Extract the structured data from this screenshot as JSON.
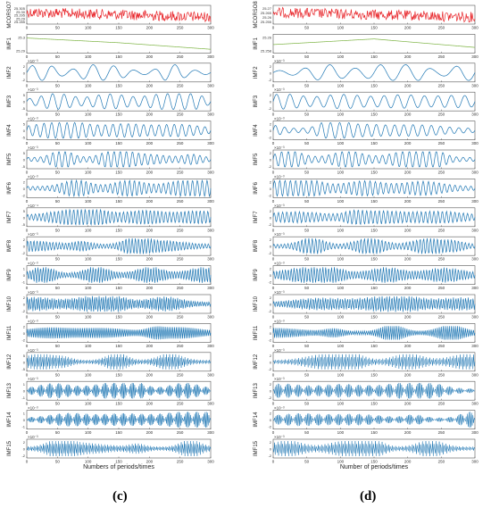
{
  "chart_data": [
    {
      "type": "line",
      "panel": "c",
      "caption": "(c)",
      "xlabel": "Numbers of periods/times",
      "xlim": [
        0,
        300
      ],
      "xticks": [
        0,
        50,
        100,
        150,
        200,
        250,
        300
      ],
      "subplots": [
        {
          "label": "MCORSO7",
          "kind": "noise",
          "color": "#e8262b",
          "yticks": [
            "25.305",
            "25.30",
            "25.295",
            "25.29",
            "25.285"
          ],
          "offset": 0,
          "amp": 0.4,
          "freq": 0,
          "env": 0
        },
        {
          "label": "IMF1",
          "kind": "trend",
          "color": "#7cb342",
          "yticks": [
            "25.3",
            "25.29"
          ],
          "trend": [
            0.8,
            0.55,
            0.2
          ]
        },
        {
          "label": "IMF2",
          "kind": "osc",
          "color": "#1f77b4",
          "exp": "×10⁻³",
          "yticks": [
            "2",
            "0",
            "-2"
          ],
          "freq": 9,
          "env": 1
        },
        {
          "label": "IMF3",
          "kind": "osc",
          "color": "#1f77b4",
          "exp": "×10⁻³",
          "yticks": [
            "5",
            "0",
            "-5"
          ],
          "freq": 16,
          "env": 2
        },
        {
          "label": "IMF4",
          "kind": "osc",
          "color": "#1f77b4",
          "exp": "×10⁻³",
          "yticks": [
            "5",
            "0",
            "-5"
          ],
          "freq": 24,
          "env": 3
        },
        {
          "label": "IMF5",
          "kind": "osc",
          "color": "#1f77b4",
          "exp": "×10⁻³",
          "yticks": [
            "5",
            "0",
            "-5"
          ],
          "freq": 30,
          "env": 4
        },
        {
          "label": "IMF6",
          "kind": "osc",
          "color": "#1f77b4",
          "exp": "×10⁻³",
          "yticks": [
            "2",
            "0",
            "-2"
          ],
          "freq": 38,
          "env": 5
        },
        {
          "label": "IMF7",
          "kind": "osc",
          "color": "#1f77b4",
          "exp": "×10⁻⁴",
          "yticks": [
            "5",
            "0",
            "-5"
          ],
          "freq": 48,
          "env": 6
        },
        {
          "label": "IMF8",
          "kind": "osc",
          "color": "#1f77b4",
          "exp": "×10⁻³",
          "yticks": [
            "2",
            "0",
            "-2"
          ],
          "freq": 58,
          "env": 7
        },
        {
          "label": "IMF9",
          "kind": "osc",
          "color": "#1f77b4",
          "exp": "×10⁻³",
          "yticks": [
            "1",
            "0",
            "-1"
          ],
          "freq": 70,
          "env": 8
        },
        {
          "label": "IMF10",
          "kind": "osc",
          "color": "#1f77b4",
          "exp": "×10⁻³",
          "yticks": [
            "2",
            "0",
            "-2"
          ],
          "freq": 82,
          "env": 9
        },
        {
          "label": "IMF11",
          "kind": "osc",
          "color": "#1f77b4",
          "exp": "×10⁻³",
          "yticks": [
            "2",
            "0",
            "-2"
          ],
          "freq": 100,
          "env": 10
        },
        {
          "label": "IMF12",
          "kind": "osc",
          "color": "#1f77b4",
          "exp": "×10⁻³",
          "yticks": [
            "5",
            "0",
            "-5"
          ],
          "freq": 120,
          "env": 11
        },
        {
          "label": "IMF13",
          "kind": "osc",
          "color": "#1f77b4",
          "exp": "×10⁻³",
          "yticks": [
            "1",
            "0",
            "-1"
          ],
          "freq": 140,
          "env": 12
        },
        {
          "label": "IMF14",
          "kind": "osc",
          "color": "#1f77b4",
          "exp": "×10⁻³",
          "yticks": [
            "1",
            "0",
            "-1"
          ],
          "freq": 160,
          "env": 13
        },
        {
          "label": "IMF15",
          "kind": "osc",
          "color": "#1f77b4",
          "exp": "×10⁻³",
          "yticks": [
            "2",
            "0",
            "-2"
          ],
          "freq": 180,
          "env": 14
        }
      ]
    },
    {
      "type": "line",
      "panel": "d",
      "caption": "(d)",
      "xlabel": "Number of periods/times",
      "xlim": [
        0,
        300
      ],
      "xticks": [
        0,
        50,
        100,
        150,
        200,
        250,
        300
      ],
      "subplots": [
        {
          "label": "MCORSO8",
          "kind": "noise",
          "color": "#e8262b",
          "yticks": [
            "25.27",
            "25.265",
            "25.26",
            "25.255"
          ],
          "offset": 0,
          "amp": 0.3,
          "freq": 0,
          "env": 0
        },
        {
          "label": "IMF1",
          "kind": "trend",
          "color": "#7cb342",
          "yticks": [
            "25.26",
            "25.258"
          ],
          "trend": [
            0.45,
            0.75,
            0.3
          ]
        },
        {
          "label": "IMF2",
          "kind": "osc",
          "color": "#1f77b4",
          "exp": "×10⁻³",
          "yticks": [
            "2",
            "0",
            "-2"
          ],
          "freq": 8,
          "env": 15
        },
        {
          "label": "IMF3",
          "kind": "osc",
          "color": "#1f77b4",
          "exp": "×10⁻³",
          "yticks": [
            "2",
            "0",
            "-2"
          ],
          "freq": 15,
          "env": 16
        },
        {
          "label": "IMF4",
          "kind": "osc",
          "color": "#1f77b4",
          "exp": "×10⁻³",
          "yticks": [
            "2",
            "0",
            "-2"
          ],
          "freq": 22,
          "env": 17
        },
        {
          "label": "IMF5",
          "kind": "osc",
          "color": "#1f77b4",
          "exp": "×10⁻³",
          "yticks": [
            "2",
            "0",
            "-2"
          ],
          "freq": 30,
          "env": 18
        },
        {
          "label": "IMF6",
          "kind": "osc",
          "color": "#1f77b4",
          "exp": "×10⁻³",
          "yticks": [
            "2",
            "0",
            "-2"
          ],
          "freq": 38,
          "env": 19
        },
        {
          "label": "IMF7",
          "kind": "osc",
          "color": "#1f77b4",
          "exp": "×10⁻³",
          "yticks": [
            "2",
            "0",
            "-2"
          ],
          "freq": 48,
          "env": 20
        },
        {
          "label": "IMF8",
          "kind": "osc",
          "color": "#1f77b4",
          "exp": "×10⁻³",
          "yticks": [
            "2",
            "0",
            "-2"
          ],
          "freq": 58,
          "env": 21
        },
        {
          "label": "IMF9",
          "kind": "osc",
          "color": "#1f77b4",
          "exp": "×10⁻³",
          "yticks": [
            "2",
            "0",
            "-2"
          ],
          "freq": 70,
          "env": 22
        },
        {
          "label": "IMF10",
          "kind": "osc",
          "color": "#1f77b4",
          "exp": "×10⁻³",
          "yticks": [
            "2",
            "0",
            "-2"
          ],
          "freq": 82,
          "env": 23
        },
        {
          "label": "IMF11",
          "kind": "osc",
          "color": "#1f77b4",
          "exp": "×10⁻³",
          "yticks": [
            "2",
            "0",
            "-2"
          ],
          "freq": 100,
          "env": 24
        },
        {
          "label": "IMF12",
          "kind": "osc",
          "color": "#1f77b4",
          "exp": "×10⁻³",
          "yticks": [
            "2",
            "0",
            "-2"
          ],
          "freq": 120,
          "env": 25
        },
        {
          "label": "IMF13",
          "kind": "osc",
          "color": "#1f77b4",
          "exp": "×10⁻³",
          "yticks": [
            "2",
            "0",
            "-2"
          ],
          "freq": 140,
          "env": 26
        },
        {
          "label": "IMF14",
          "kind": "osc",
          "color": "#1f77b4",
          "exp": "×10⁻³",
          "yticks": [
            "2",
            "0",
            "-2"
          ],
          "freq": 160,
          "env": 27
        },
        {
          "label": "IMF15",
          "kind": "osc",
          "color": "#1f77b4",
          "exp": "×10⁻³",
          "yticks": [
            "2",
            "0",
            "-2"
          ],
          "freq": 180,
          "env": 28
        }
      ]
    }
  ]
}
